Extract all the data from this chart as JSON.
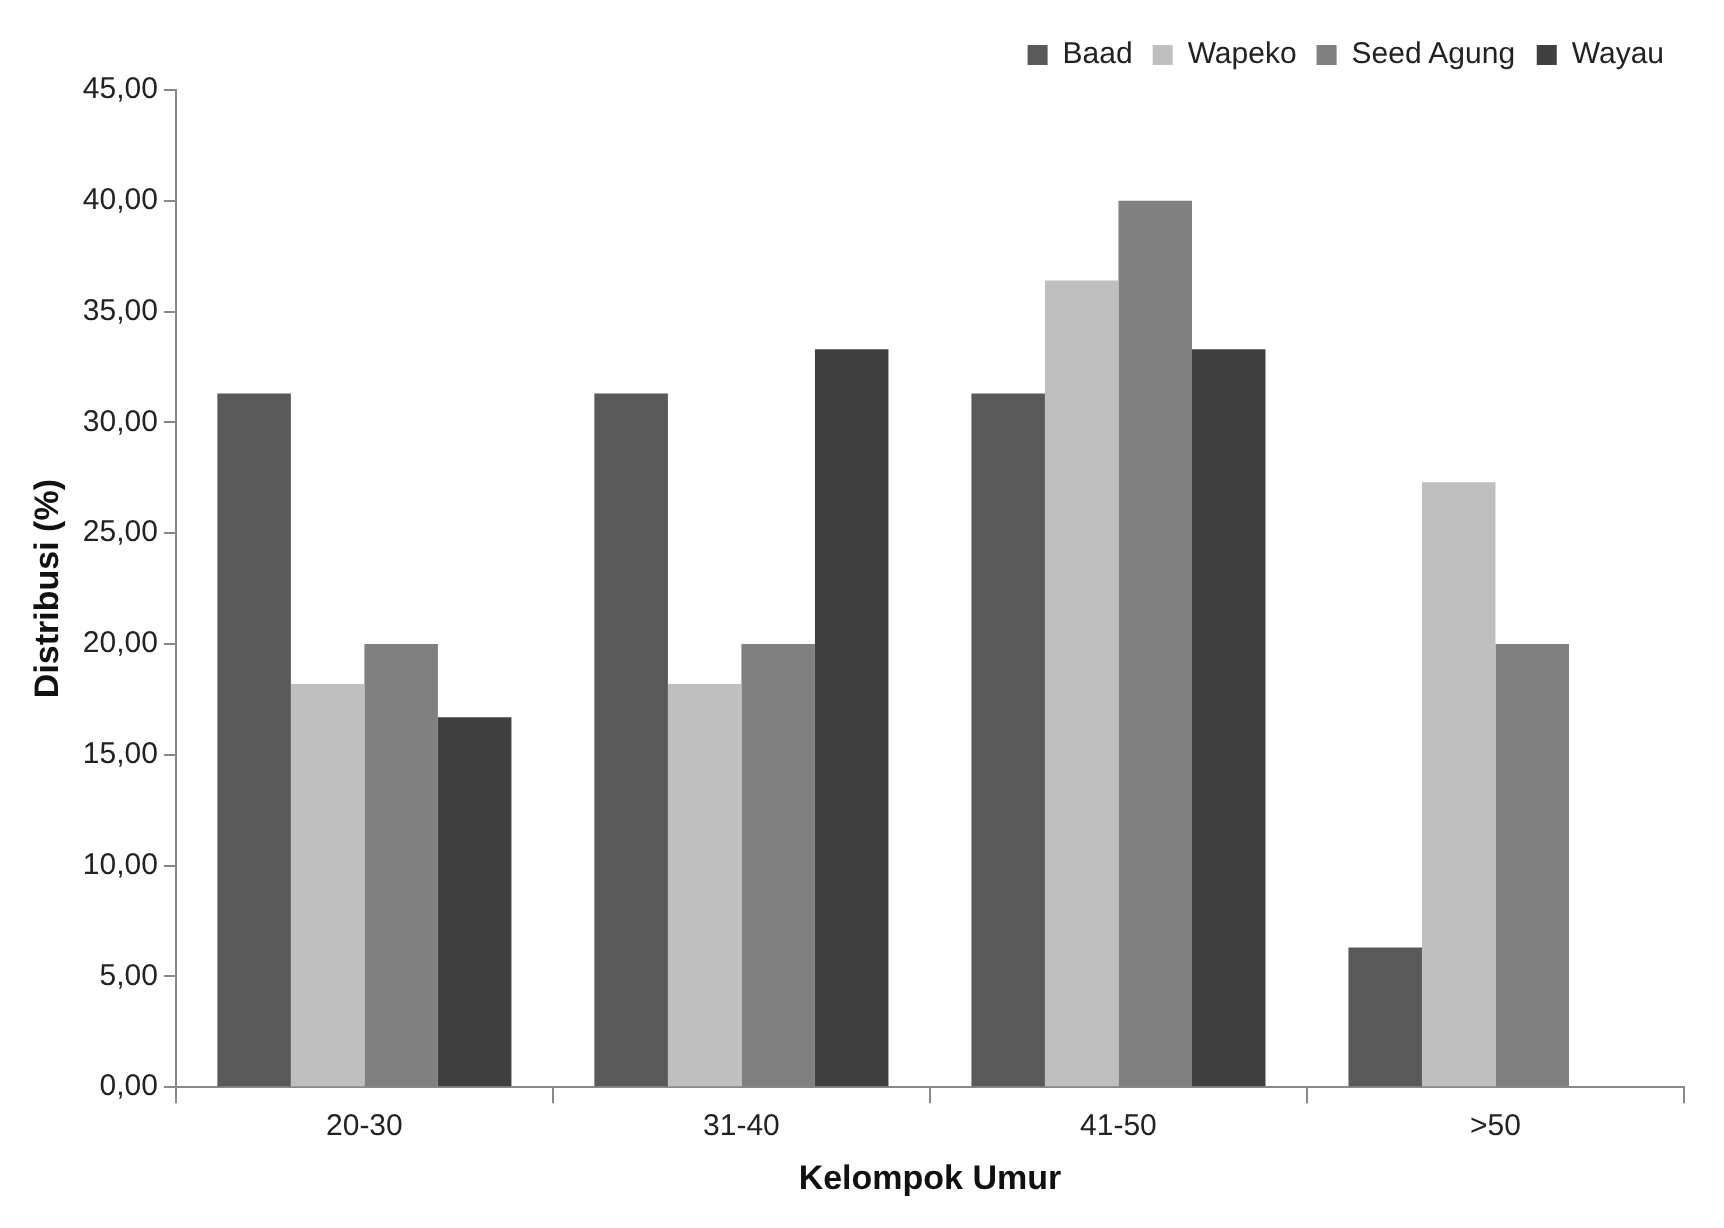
{
  "chart_data": {
    "type": "bar",
    "xlabel": "Kelompok Umur",
    "ylabel": "Distribusi (%)",
    "categories": [
      "20-30",
      "31-40",
      "41-50",
      ">50"
    ],
    "series": [
      {
        "name": "Baad",
        "color": "#595959",
        "values": [
          31.3,
          31.3,
          31.3,
          6.3
        ]
      },
      {
        "name": "Wapeko",
        "color": "#bfbfbf",
        "values": [
          18.2,
          18.2,
          36.4,
          27.3
        ]
      },
      {
        "name": "Seed Agung",
        "color": "#808080",
        "values": [
          20,
          20,
          40,
          20
        ]
      },
      {
        "name": "Wayau",
        "color": "#404040",
        "values": [
          16.7,
          33.3,
          33.3,
          null
        ]
      }
    ],
    "ylim": [
      0,
      45
    ],
    "yticks": [
      {
        "value": 0,
        "label": "0,00"
      },
      {
        "value": 5,
        "label": "5,00"
      },
      {
        "value": 10,
        "label": "10,00"
      },
      {
        "value": 15,
        "label": "15,00"
      },
      {
        "value": 20,
        "label": "20,00"
      },
      {
        "value": 25,
        "label": "25,00"
      },
      {
        "value": 30,
        "label": "30,00"
      },
      {
        "value": 35,
        "label": "35,00"
      },
      {
        "value": 40,
        "label": "40,00"
      },
      {
        "value": 45,
        "label": "45,00"
      }
    ],
    "grid": false,
    "legend": "top right"
  }
}
